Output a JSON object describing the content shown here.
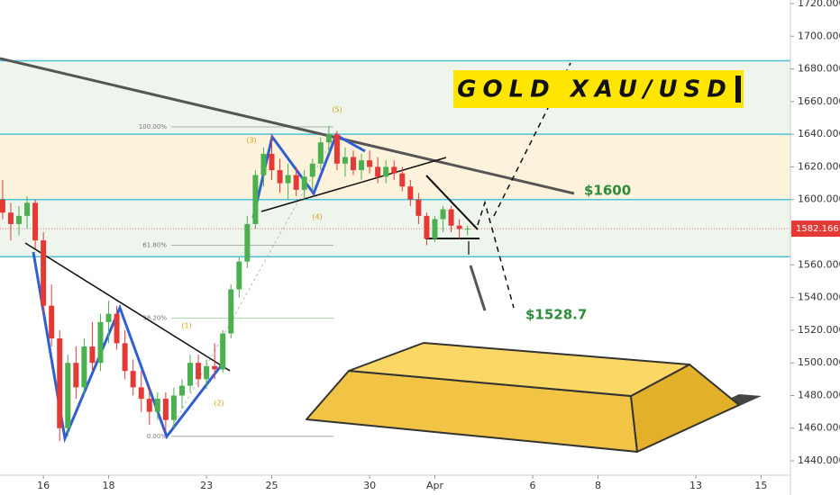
{
  "chart_data": {
    "type": "candlestick",
    "title": "GOLD XAU/USD",
    "up_color": "#4caf50",
    "down_color": "#e53935",
    "xlim": [
      -1.33,
      22.9
    ],
    "ylim": [
      1431.2,
      1722.2
    ],
    "xticks": [
      {
        "value": 0,
        "label": "16"
      },
      {
        "value": 2,
        "label": "18"
      },
      {
        "value": 5,
        "label": "23"
      },
      {
        "value": 7,
        "label": "25"
      },
      {
        "value": 10,
        "label": "30"
      },
      {
        "value": 12,
        "label": "Apr"
      },
      {
        "value": 15,
        "label": "6"
      },
      {
        "value": 17,
        "label": "8"
      },
      {
        "value": 20,
        "label": "13"
      },
      {
        "value": 22,
        "label": "15"
      }
    ],
    "yticks": [
      {
        "value": 1440,
        "label": "1440.000"
      },
      {
        "value": 1460,
        "label": "1460.000"
      },
      {
        "value": 1480,
        "label": "1480.000"
      },
      {
        "value": 1500,
        "label": "1500.000"
      },
      {
        "value": 1520,
        "label": "1520.000"
      },
      {
        "value": 1540,
        "label": "1540.000"
      },
      {
        "value": 1560,
        "label": "1560.000"
      },
      {
        "value": 1580,
        "label": "1580.000"
      },
      {
        "value": 1600,
        "label": "1600.000"
      },
      {
        "value": 1620,
        "label": "1620.000"
      },
      {
        "value": 1640,
        "label": "1640.000"
      },
      {
        "value": 1660,
        "label": "1660.000"
      },
      {
        "value": 1680,
        "label": "1680.000"
      },
      {
        "value": 1700,
        "label": "1700.000"
      },
      {
        "value": 1720,
        "label": "1720.000"
      }
    ],
    "x": [
      -1.25,
      -1,
      -0.75,
      -0.5,
      -0.25,
      0,
      0.25,
      0.5,
      0.75,
      1,
      1.25,
      1.5,
      1.75,
      2,
      2.25,
      2.5,
      2.75,
      3,
      3.25,
      3.5,
      3.75,
      4,
      4.25,
      4.5,
      4.75,
      5,
      5.25,
      5.5,
      5.75,
      6,
      6.25,
      6.5,
      6.75,
      7,
      7.25,
      7.5,
      7.75,
      8,
      8.25,
      8.5,
      8.75,
      9,
      9.25,
      9.5,
      9.75,
      10,
      10.25,
      10.5,
      10.75,
      11,
      11.25,
      11.5,
      11.75,
      12,
      12.25,
      12.5,
      12.75,
      13
    ],
    "open": [
      1600,
      1592,
      1585,
      1590,
      1598,
      1575,
      1535,
      1515,
      1460,
      1500,
      1485,
      1510,
      1500,
      1525,
      1530,
      1512,
      1495,
      1485,
      1478,
      1470,
      1478,
      1465,
      1480,
      1486,
      1500,
      1490,
      1498,
      1496,
      1518,
      1545,
      1562,
      1585,
      1615,
      1628,
      1618,
      1610,
      1615,
      1606,
      1614,
      1622,
      1635,
      1640,
      1622,
      1626,
      1618,
      1624,
      1620,
      1614,
      1620,
      1616,
      1608,
      1600,
      1590,
      1576,
      1588,
      1594,
      1584,
      1582
    ],
    "high": [
      1612,
      1598,
      1596,
      1602,
      1600,
      1580,
      1548,
      1520,
      1505,
      1510,
      1515,
      1525,
      1530,
      1538,
      1535,
      1520,
      1502,
      1495,
      1485,
      1482,
      1482,
      1485,
      1490,
      1505,
      1505,
      1502,
      1512,
      1520,
      1548,
      1565,
      1590,
      1618,
      1632,
      1640,
      1625,
      1622,
      1620,
      1618,
      1625,
      1638,
      1645,
      1642,
      1632,
      1630,
      1628,
      1630,
      1626,
      1624,
      1624,
      1620,
      1612,
      1604,
      1592,
      1590,
      1596,
      1596,
      1588,
      1584
    ],
    "low": [
      1588,
      1575,
      1578,
      1582,
      1570,
      1530,
      1510,
      1452,
      1455,
      1478,
      1480,
      1495,
      1495,
      1512,
      1508,
      1490,
      1480,
      1470,
      1462,
      1465,
      1458,
      1460,
      1472,
      1482,
      1485,
      1484,
      1490,
      1494,
      1515,
      1540,
      1558,
      1582,
      1608,
      1612,
      1604,
      1600,
      1602,
      1600,
      1605,
      1618,
      1628,
      1618,
      1614,
      1615,
      1612,
      1616,
      1610,
      1610,
      1612,
      1605,
      1596,
      1585,
      1572,
      1574,
      1580,
      1580,
      1576,
      1578
    ],
    "close": [
      1592,
      1585,
      1590,
      1598,
      1575,
      1535,
      1515,
      1460,
      1500,
      1485,
      1510,
      1500,
      1525,
      1530,
      1512,
      1495,
      1485,
      1478,
      1470,
      1478,
      1465,
      1480,
      1486,
      1500,
      1490,
      1498,
      1496,
      1518,
      1545,
      1562,
      1585,
      1615,
      1628,
      1618,
      1610,
      1615,
      1606,
      1614,
      1622,
      1635,
      1640,
      1622,
      1626,
      1618,
      1624,
      1620,
      1614,
      1620,
      1616,
      1608,
      1600,
      1590,
      1576,
      1588,
      1594,
      1584,
      1582,
      1582.166
    ],
    "levels": [
      1685,
      1640,
      1600,
      1565
    ],
    "fib_levels": [
      {
        "label": "100.00%",
        "value": 1644.5
      },
      {
        "label": "61.80%",
        "value": 1572.1
      },
      {
        "label": "38.20%",
        "value": 1527.4
      },
      {
        "label": "0.00%",
        "value": 1455
      }
    ],
    "wave_labels": [
      "(1)",
      "(2)",
      "(3)",
      "(4)",
      "(5)"
    ],
    "annotations": [
      "$1600",
      "$1528.7"
    ]
  }
}
